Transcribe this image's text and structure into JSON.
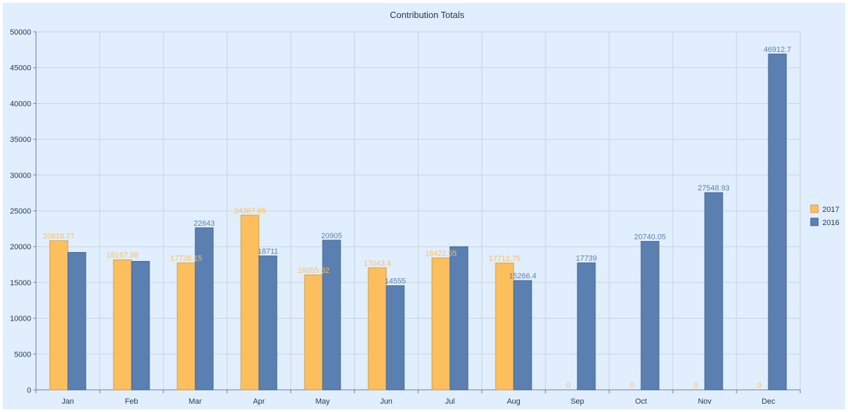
{
  "chart_data": {
    "type": "bar",
    "title": "Contribution Totals",
    "xlabel": "",
    "ylabel": "",
    "categories": [
      "Jan",
      "Feb",
      "Mar",
      "Apr",
      "May",
      "Jun",
      "Jul",
      "Aug",
      "Sep",
      "Oct",
      "Nov",
      "Dec"
    ],
    "series": [
      {
        "name": "2017",
        "color": "#fdbf5e",
        "values": [
          20818.77,
          18167.88,
          17728.15,
          24387.65,
          16055.32,
          17043.4,
          18422.55,
          17712.75,
          0,
          0,
          0,
          0
        ],
        "labels": [
          "20818.77",
          "18167.88",
          "17728.15",
          "24387.65",
          "16055.32",
          "17043.4",
          "18422.55",
          "17712.75",
          "0",
          "0",
          "0",
          "0"
        ]
      },
      {
        "name": "2016",
        "color": "#5a80b2",
        "values": [
          19200,
          17950,
          22643,
          18711,
          20905,
          14555,
          20000,
          15266.4,
          17739,
          20740.05,
          27548.93,
          46912.7
        ],
        "labels": [
          "",
          "",
          "22643",
          "18711",
          "20905",
          "14555",
          "",
          "15266.4",
          "17739",
          "20740.05",
          "27548.93",
          "46912.7"
        ]
      }
    ],
    "ylim": [
      0,
      50000
    ],
    "yticks": [
      "0",
      "5000",
      "10000",
      "15000",
      "20000",
      "25000",
      "30000",
      "35000",
      "40000",
      "45000",
      "50000"
    ],
    "grid": true,
    "legend": "right"
  }
}
